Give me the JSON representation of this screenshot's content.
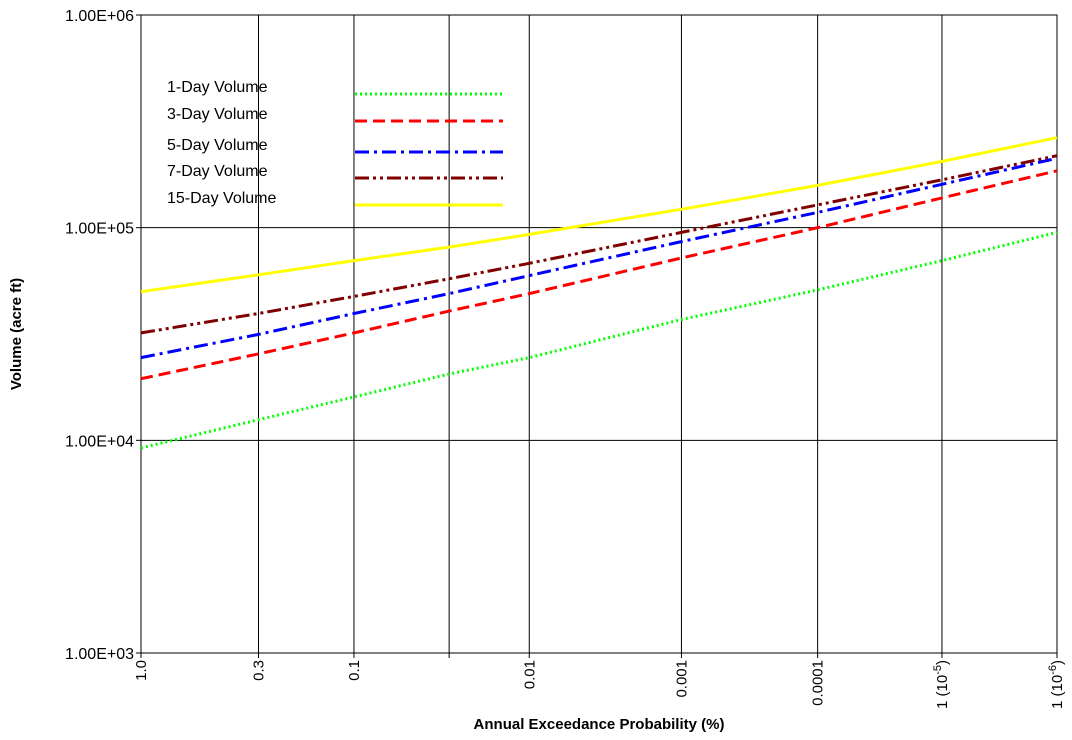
{
  "chart_data": {
    "type": "line",
    "title": "",
    "xlabel": "Annual Exceedance Probability (%)",
    "ylabel": "Volume (acre ft)",
    "y_scale": "log",
    "ylim": [
      1000,
      1000000
    ],
    "y_ticks": [
      "1.00E+03",
      "1.00E+04",
      "1.00E+05",
      "1.00E+06"
    ],
    "x_scale": "normal-probability",
    "xlim": [
      1.0,
      1e-06
    ],
    "x_ticks": [
      {
        "value": 1.0,
        "label": "1.0"
      },
      {
        "value": 0.3,
        "label": "0.3"
      },
      {
        "value": 0.1,
        "label": "0.1"
      },
      {
        "value": 0.03,
        "label": ""
      },
      {
        "value": 0.01,
        "label": "0.01"
      },
      {
        "value": 0.001,
        "label": "0.001"
      },
      {
        "value": 0.0001,
        "label": "0.0001"
      },
      {
        "value": 1e-05,
        "label": "1 (10",
        "exponent": "-5",
        "suffix": ")"
      },
      {
        "value": 1e-06,
        "label": "1 (10",
        "exponent": "-6",
        "suffix": ")"
      }
    ],
    "grid": true,
    "legend_position": "top-left",
    "x": [
      1.0,
      0.3,
      0.1,
      0.03,
      0.01,
      0.001,
      0.0001,
      1e-05,
      1e-06
    ],
    "series": [
      {
        "name": "1-Day Volume",
        "color": "#00ff00",
        "dash": "dotted",
        "values": [
          9200,
          12500,
          16000,
          20500,
          24500,
          37000,
          51000,
          70000,
          95000
        ]
      },
      {
        "name": "3-Day Volume",
        "color": "#ff0000",
        "dash": "dashed",
        "values": [
          19500,
          25500,
          32000,
          40500,
          49000,
          72000,
          100000,
          138000,
          185000
        ]
      },
      {
        "name": "5-Day Volume",
        "color": "#0000ff",
        "dash": "dash-dot",
        "values": [
          24500,
          31500,
          39500,
          49000,
          59500,
          86000,
          118000,
          160000,
          212000
        ]
      },
      {
        "name": "7-Day Volume",
        "color": "#800000",
        "dash": "dash-dot-dot",
        "values": [
          32000,
          39500,
          47500,
          57500,
          68000,
          95000,
          128000,
          168000,
          218000
        ]
      },
      {
        "name": "15-Day Volume",
        "color": "#ffff00",
        "dash": "solid",
        "values": [
          50000,
          60000,
          70000,
          81000,
          93000,
          122000,
          158000,
          205000,
          265000
        ]
      }
    ]
  }
}
